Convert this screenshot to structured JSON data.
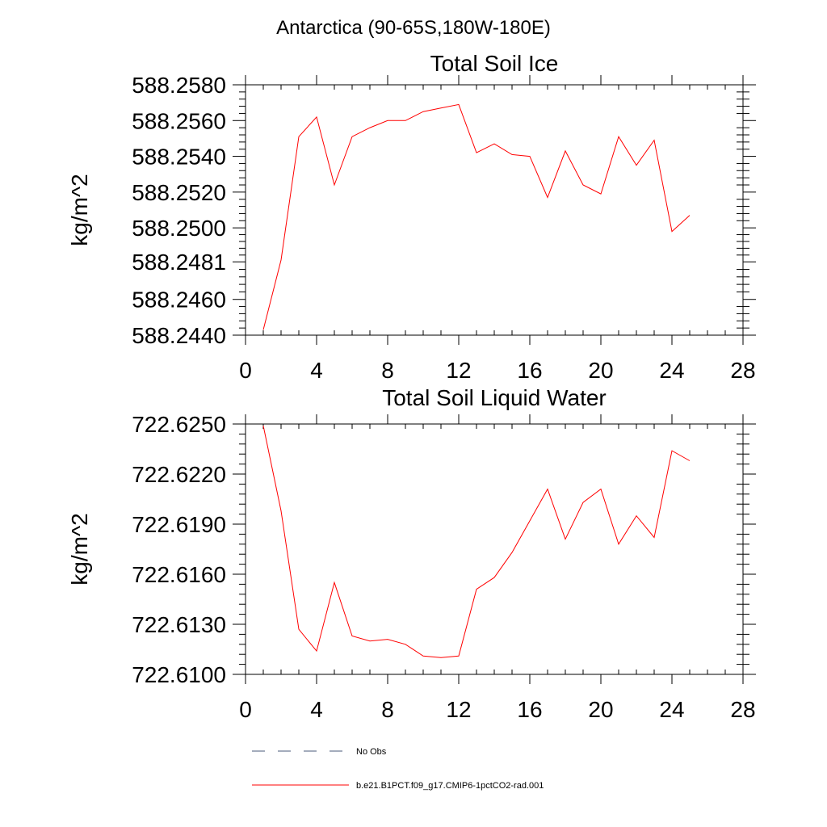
{
  "figure_title": "Antarctica (90-65S,180W-180E)",
  "legend": {
    "entries": [
      {
        "label": "No Obs",
        "color": "#4a5a7a",
        "style": "dashed"
      },
      {
        "label": "b.e21.B1PCT.f09_g17.CMIP6-1pctCO2-rad.001",
        "color": "#ff0000",
        "style": "solid"
      }
    ]
  },
  "chart_data": [
    {
      "type": "line",
      "title": "Total Soil Ice",
      "xlabel": "",
      "ylabel": "kg/m^2",
      "xlim": [
        0,
        28
      ],
      "ylim": [
        588.244,
        588.258
      ],
      "x_ticks": [
        0,
        4,
        8,
        12,
        16,
        20,
        24,
        28
      ],
      "x_tick_labels": [
        "0",
        "4",
        "8",
        "12",
        "16",
        "20",
        "24",
        "28"
      ],
      "y_ticks": [
        588.244,
        588.246,
        588.2481,
        588.25,
        588.252,
        588.254,
        588.256,
        588.258
      ],
      "y_tick_labels": [
        "588.2440",
        "588.2460",
        "588.2481",
        "588.2500",
        "588.2520",
        "588.2540",
        "588.2560",
        "588.2580"
      ],
      "grid": false,
      "series": [
        {
          "name": "b.e21.B1PCT.f09_g17.CMIP6-1pctCO2-rad.001",
          "color": "#ff0000",
          "x": [
            1,
            2,
            3,
            4,
            5,
            6,
            7,
            8,
            9,
            10,
            11,
            12,
            13,
            14,
            15,
            16,
            17,
            18,
            19,
            20,
            21,
            22,
            23,
            24,
            25
          ],
          "y": [
            588.2443,
            588.2482,
            588.2551,
            588.2562,
            588.2524,
            588.2551,
            588.2556,
            588.256,
            588.256,
            588.2565,
            588.2567,
            588.2569,
            588.2542,
            588.2547,
            588.2541,
            588.254,
            588.2517,
            588.2543,
            588.2524,
            588.2519,
            588.2551,
            588.2535,
            588.2549,
            588.2498,
            588.2507
          ]
        }
      ]
    },
    {
      "type": "line",
      "title": "Total Soil Liquid Water",
      "xlabel": "",
      "ylabel": "kg/m^2",
      "xlim": [
        0,
        28
      ],
      "ylim": [
        722.61,
        722.625
      ],
      "x_ticks": [
        0,
        4,
        8,
        12,
        16,
        20,
        24,
        28
      ],
      "x_tick_labels": [
        "0",
        "4",
        "8",
        "12",
        "16",
        "20",
        "24",
        "28"
      ],
      "y_ticks": [
        722.61,
        722.613,
        722.616,
        722.619,
        722.622,
        722.625
      ],
      "y_tick_labels": [
        "722.6100",
        "722.6130",
        "722.6160",
        "722.6190",
        "722.6220",
        "722.6250"
      ],
      "grid": false,
      "series": [
        {
          "name": "b.e21.B1PCT.f09_g17.CMIP6-1pctCO2-rad.001",
          "color": "#ff0000",
          "x": [
            1,
            2,
            3,
            4,
            5,
            6,
            7,
            8,
            9,
            10,
            11,
            12,
            13,
            14,
            15,
            16,
            17,
            18,
            19,
            20,
            21,
            22,
            23,
            24,
            25
          ],
          "y": [
            722.6249,
            722.6198,
            722.6127,
            722.6114,
            722.6155,
            722.6123,
            722.612,
            722.6121,
            722.6118,
            722.6111,
            722.611,
            722.6111,
            722.6151,
            722.6158,
            722.6173,
            722.6192,
            722.6211,
            722.6181,
            722.6203,
            722.6211,
            722.6178,
            722.6195,
            722.6182,
            722.6234,
            722.6228
          ]
        }
      ]
    }
  ]
}
